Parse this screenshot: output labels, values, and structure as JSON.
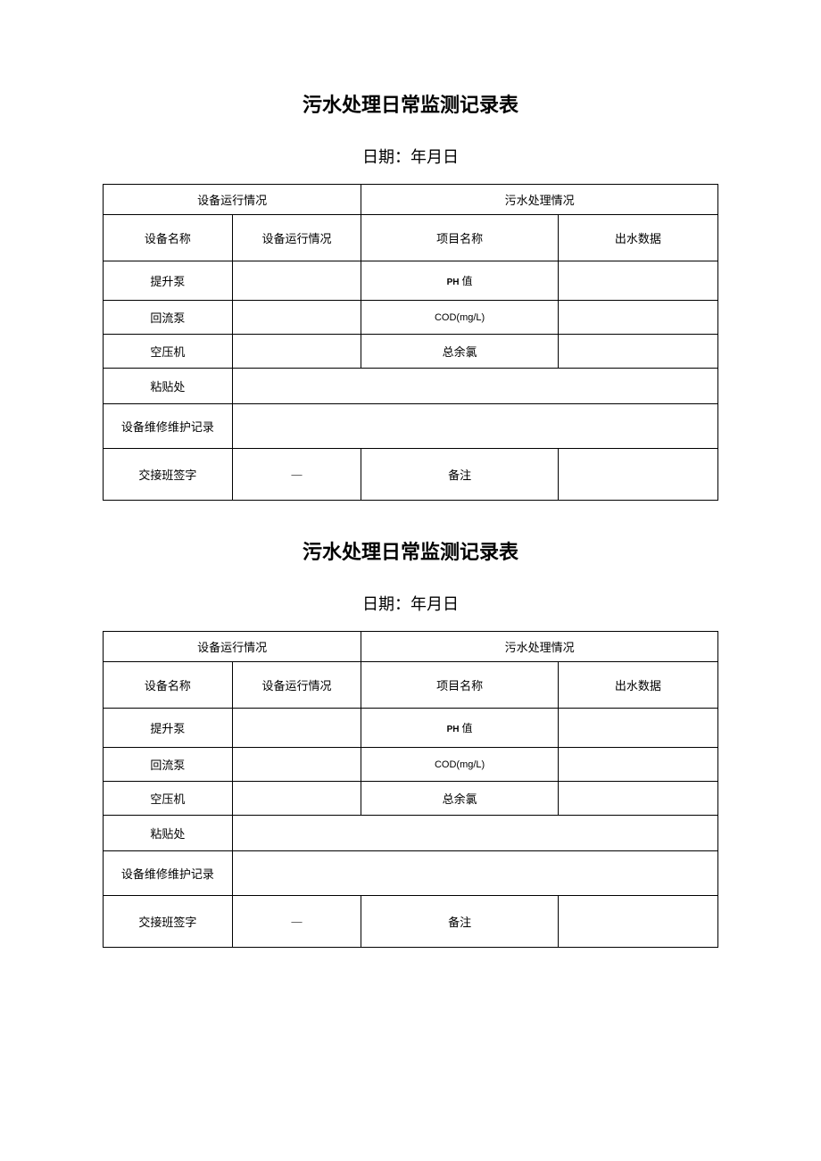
{
  "document": {
    "title": "污水处理日常监测记录表",
    "date_label": "日期：年月日",
    "columns": [
      "col1",
      "col2",
      "col3",
      "col4"
    ],
    "header": {
      "equipment_section": "设备运行情况",
      "water_section": "污水处理情况"
    },
    "subheader": {
      "equipment_name": "设备名称",
      "equipment_status": "设备运行情况",
      "project_name": "项目名称",
      "output_data": "出水数据"
    },
    "rows": {
      "r1": {
        "equipment": "提升泵",
        "project_prefix": "PH",
        "project_suffix": " 值"
      },
      "r2": {
        "equipment": "回流泵",
        "project": "COD(mg/L)"
      },
      "r3": {
        "equipment": "空压机",
        "project": "总余氯"
      },
      "r4": {
        "equipment": "粘贴处"
      },
      "r5": {
        "equipment": "设备维修维护记录"
      },
      "r6": {
        "label": "交接班签字",
        "dash": "—",
        "note_label": "备注"
      }
    }
  }
}
